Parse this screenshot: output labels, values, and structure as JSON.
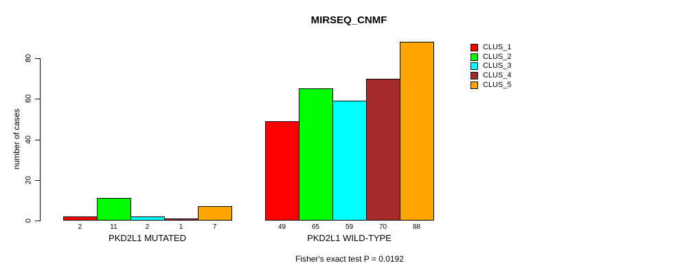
{
  "title": "MIRSEQ_CNMF",
  "footer": "Fisher's exact test P = 0.0192",
  "chart_data": {
    "type": "bar",
    "categories": [
      "PKD2L1 MUTATED",
      "PKD2L1 WILD-TYPE"
    ],
    "series": [
      {
        "name": "CLUS_1",
        "color": "#FF0000",
        "values": [
          2,
          49
        ]
      },
      {
        "name": "CLUS_2",
        "color": "#00FF00",
        "values": [
          11,
          65
        ]
      },
      {
        "name": "CLUS_3",
        "color": "#00FFFF",
        "values": [
          2,
          59
        ]
      },
      {
        "name": "CLUS_4",
        "color": "#A52A2A",
        "values": [
          1,
          70
        ]
      },
      {
        "name": "CLUS_5",
        "color": "#FFA500",
        "values": [
          7,
          88
        ]
      }
    ],
    "title": "MIRSEQ_CNMF",
    "xlabel": "",
    "ylabel": "number of cases",
    "yticks": [
      0,
      20,
      40,
      60,
      80
    ],
    "ylim": [
      0,
      88
    ],
    "bar_value_labels": true,
    "grid": false,
    "legend_position": "right",
    "annotation": "Fisher's exact test P = 0.0192",
    "axis_color": "#000000",
    "background_color": "#FFFFFF"
  }
}
